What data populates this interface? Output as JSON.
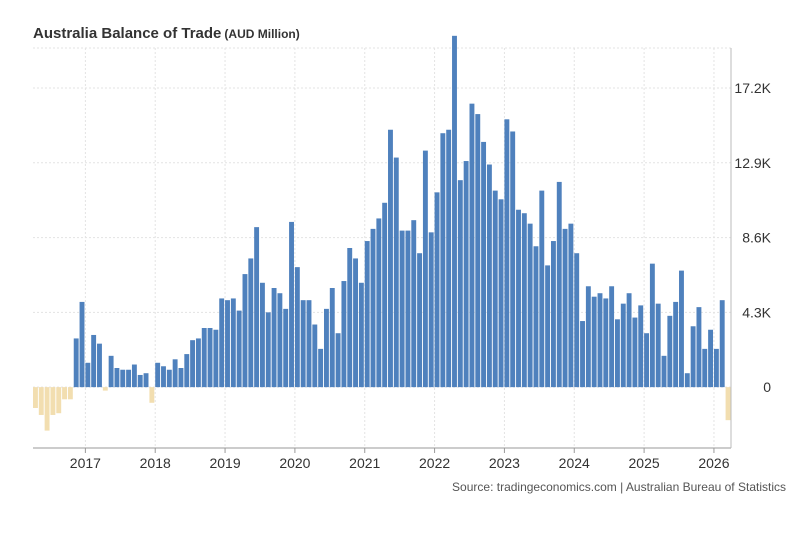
{
  "chart_data": {
    "type": "bar",
    "title": "Australia Balance of Trade",
    "subtitle": "(AUD Million)",
    "source": "Source: tradingeconomics.com | Australian Bureau of Statistics",
    "grid": true,
    "ylim": [
      -3500,
      19500
    ],
    "y_ticks": [
      {
        "value": 0,
        "label": "0"
      },
      {
        "value": 4300,
        "label": "4.3K"
      },
      {
        "value": 8600,
        "label": "8.6K"
      },
      {
        "value": 12900,
        "label": "12.9K"
      },
      {
        "value": 17200,
        "label": "17.2K"
      }
    ],
    "x_ticks": [
      "2017",
      "2018",
      "2019",
      "2020",
      "2021",
      "2022",
      "2023",
      "2024",
      "2025",
      "2026"
    ],
    "x_start": "2016-04",
    "colors": {
      "positive": "#4f81bd",
      "negative": "#f2deb0"
    },
    "values": [
      -1200,
      -1600,
      -2500,
      -1600,
      -1500,
      -700,
      -700,
      2800,
      4900,
      1400,
      3000,
      2500,
      -200,
      1800,
      1100,
      1000,
      1000,
      1300,
      700,
      800,
      -900,
      1400,
      1200,
      1000,
      1600,
      1100,
      1900,
      2700,
      2800,
      3400,
      3400,
      3300,
      5100,
      5000,
      5100,
      4400,
      6500,
      7400,
      9200,
      6000,
      4300,
      5700,
      5400,
      4500,
      9500,
      6900,
      5000,
      5000,
      3600,
      2200,
      4500,
      5700,
      3100,
      6100,
      8000,
      7400,
      6000,
      8400,
      9100,
      9700,
      10600,
      14800,
      13200,
      9000,
      9000,
      9600,
      7700,
      13600,
      8900,
      11200,
      14600,
      14800,
      20200,
      11900,
      13000,
      16300,
      15700,
      14100,
      12800,
      11300,
      10800,
      15400,
      14700,
      10200,
      10000,
      9400,
      8100,
      11300,
      7000,
      8400,
      11800,
      9100,
      9400,
      7700,
      3800,
      5800,
      5200,
      5400,
      5100,
      5800,
      3900,
      4800,
      5400,
      4000,
      4700,
      3100,
      7100,
      4800,
      1800,
      4100,
      4900,
      6700,
      800,
      3500,
      4600,
      2200,
      3300,
      2200,
      5000,
      -1900
    ]
  }
}
